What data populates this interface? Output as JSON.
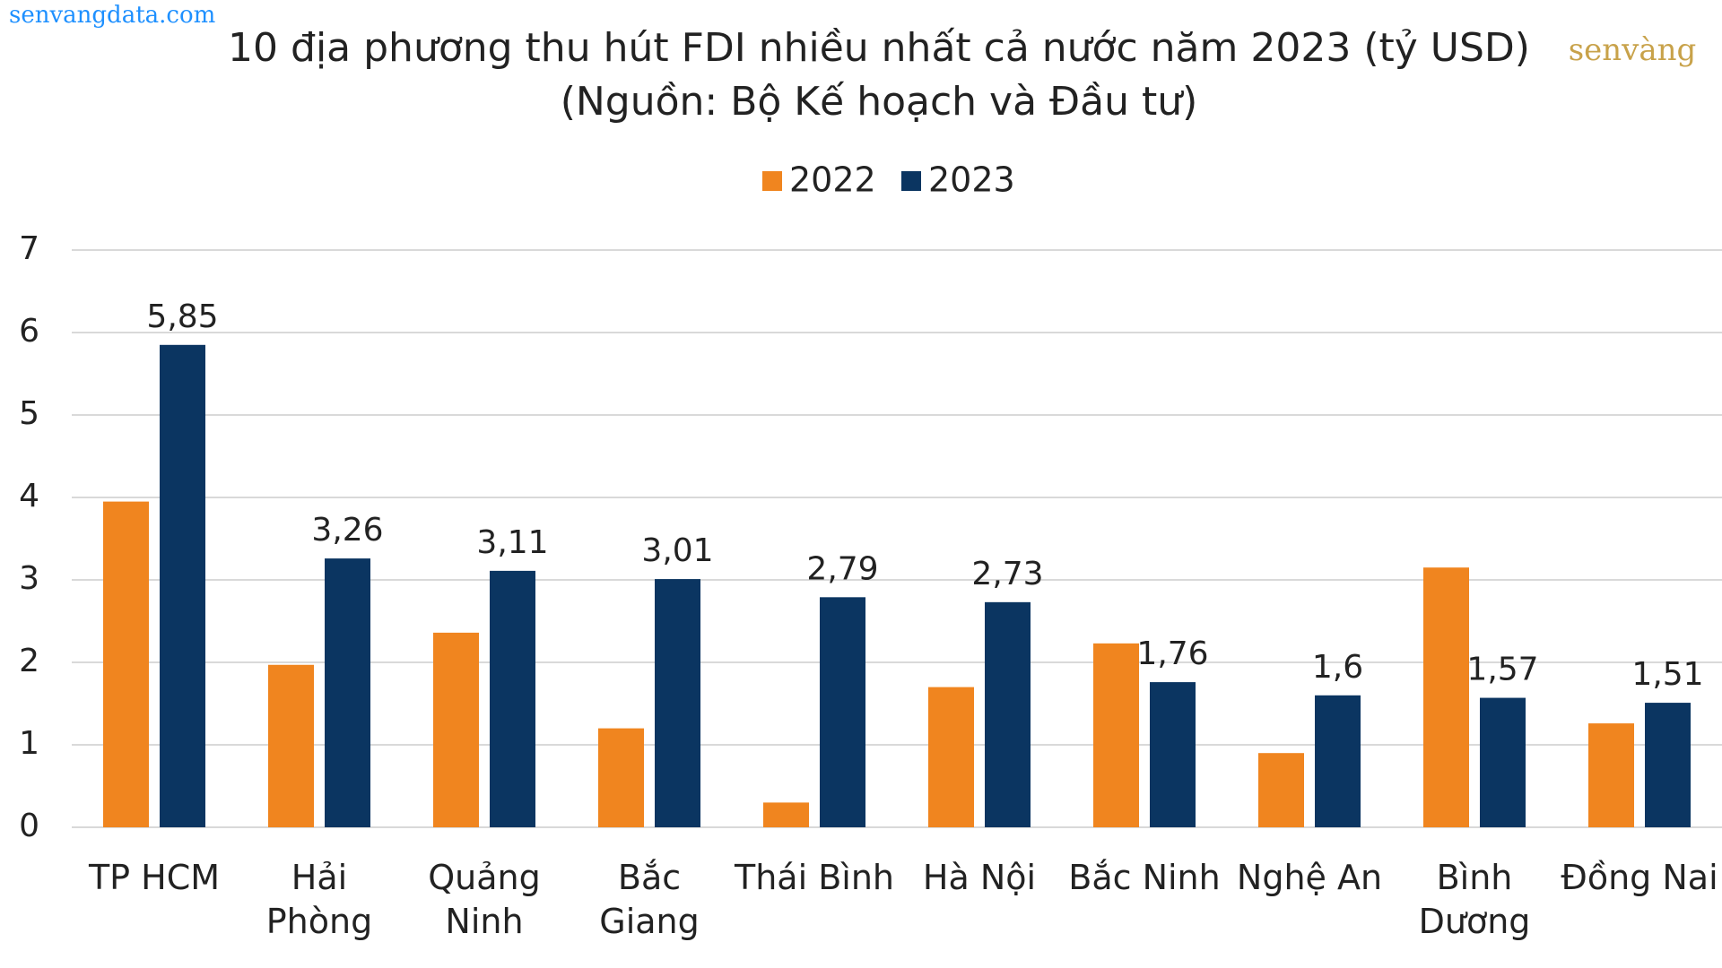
{
  "source_url": "senvangdata.com",
  "logo": "senvàng",
  "chart_data": {
    "type": "bar",
    "title": "10 địa phương thu hút FDI nhiều nhất cả nước năm 2023 (tỷ USD)",
    "subtitle": "(Nguồn: Bộ Kế hoạch và Đầu tư)",
    "categories": [
      "TP HCM",
      "Hải Phòng",
      "Quảng Ninh",
      "Bắc Giang",
      "Thái Bình",
      "Hà Nội",
      "Bắc Ninh",
      "Nghệ An",
      "Bình Dương",
      "Đồng Nai"
    ],
    "series": [
      {
        "name": "2022",
        "color": "#f0851f",
        "values": [
          3.95,
          1.97,
          2.36,
          1.2,
          0.3,
          1.7,
          2.23,
          0.9,
          3.15,
          1.26
        ]
      },
      {
        "name": "2023",
        "color": "#0b3561",
        "values": [
          5.85,
          3.26,
          3.11,
          3.01,
          2.79,
          2.73,
          1.76,
          1.6,
          1.57,
          1.51
        ],
        "value_labels": [
          "5,85",
          "3,26",
          "3,11",
          "3,01",
          "2,79",
          "2,73",
          "1,76",
          "1,6",
          "1,57",
          "1,51"
        ]
      }
    ],
    "ylim": [
      0,
      7
    ],
    "yticks": [
      0,
      1,
      2,
      3,
      4,
      5,
      6,
      7
    ],
    "grid": true,
    "legend": "top"
  }
}
